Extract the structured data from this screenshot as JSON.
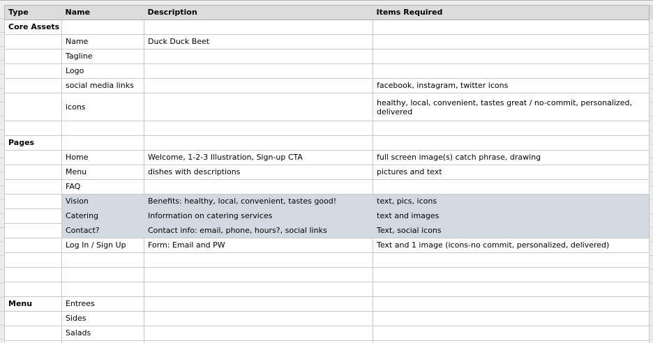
{
  "table": {
    "header": {
      "type": "Type",
      "name": "Name",
      "description": "Description",
      "items": "Items Required"
    },
    "rows": [
      {
        "type": "Core Assets",
        "name": "",
        "description": "",
        "items": ""
      },
      {
        "type": "",
        "name": "Name",
        "description": "Duck Duck Beet",
        "items": ""
      },
      {
        "type": "",
        "name": "Tagline",
        "description": "",
        "items": ""
      },
      {
        "type": "",
        "name": "Logo",
        "description": "",
        "items": ""
      },
      {
        "type": "",
        "name": "social media links",
        "description": "",
        "items": "facebook, instagram, twitter icons"
      },
      {
        "type": "",
        "name": "icons",
        "description": "",
        "items": "healthy, local, convenient, tastes great / no-commit, personalized, delivered",
        "tall": true
      },
      {
        "type": "",
        "name": "",
        "description": "",
        "items": ""
      },
      {
        "type": "Pages",
        "name": "",
        "description": "",
        "items": ""
      },
      {
        "type": "",
        "name": "Home",
        "description": "Welcome, 1-2-3 Illustration, Sign-up CTA",
        "items": "full screen image(s) catch phrase, drawing"
      },
      {
        "type": "",
        "name": "Menu",
        "description": "dishes with descriptions",
        "items": "pictures and text"
      },
      {
        "type": "",
        "name": "FAQ",
        "description": "",
        "items": ""
      },
      {
        "type": "",
        "name": "Vision",
        "description": "Benefits: healthy, local, convenient, tastes good!",
        "items": "text, pics, icons",
        "highlight": true
      },
      {
        "type": "",
        "name": "Catering",
        "description": "Information on catering services",
        "items": "text and images",
        "highlight": true
      },
      {
        "type": "",
        "name": "Contact?",
        "description": "Contact info: email, phone, hours?, social links",
        "items": "Text, social icons",
        "highlight": true
      },
      {
        "type": "",
        "name": "Log In / Sign Up",
        "description": "Form: Email and PW",
        "items": "Text and 1 image (icons-no commit, personalized, delivered)"
      },
      {
        "type": "",
        "name": "",
        "description": "",
        "items": ""
      },
      {
        "type": "",
        "name": "",
        "description": "",
        "items": ""
      },
      {
        "type": "",
        "name": "",
        "description": "",
        "items": ""
      },
      {
        "type": "Menu",
        "name": "Entrees",
        "description": "",
        "items": ""
      },
      {
        "type": "",
        "name": "Sides",
        "description": "",
        "items": ""
      },
      {
        "type": "",
        "name": "Salads",
        "description": "",
        "items": ""
      },
      {
        "type": "",
        "name": "?",
        "description": "",
        "items": ""
      }
    ],
    "colors": {
      "row_highlight": "#d2d9e1",
      "header_background": "#dcdcdc"
    }
  }
}
